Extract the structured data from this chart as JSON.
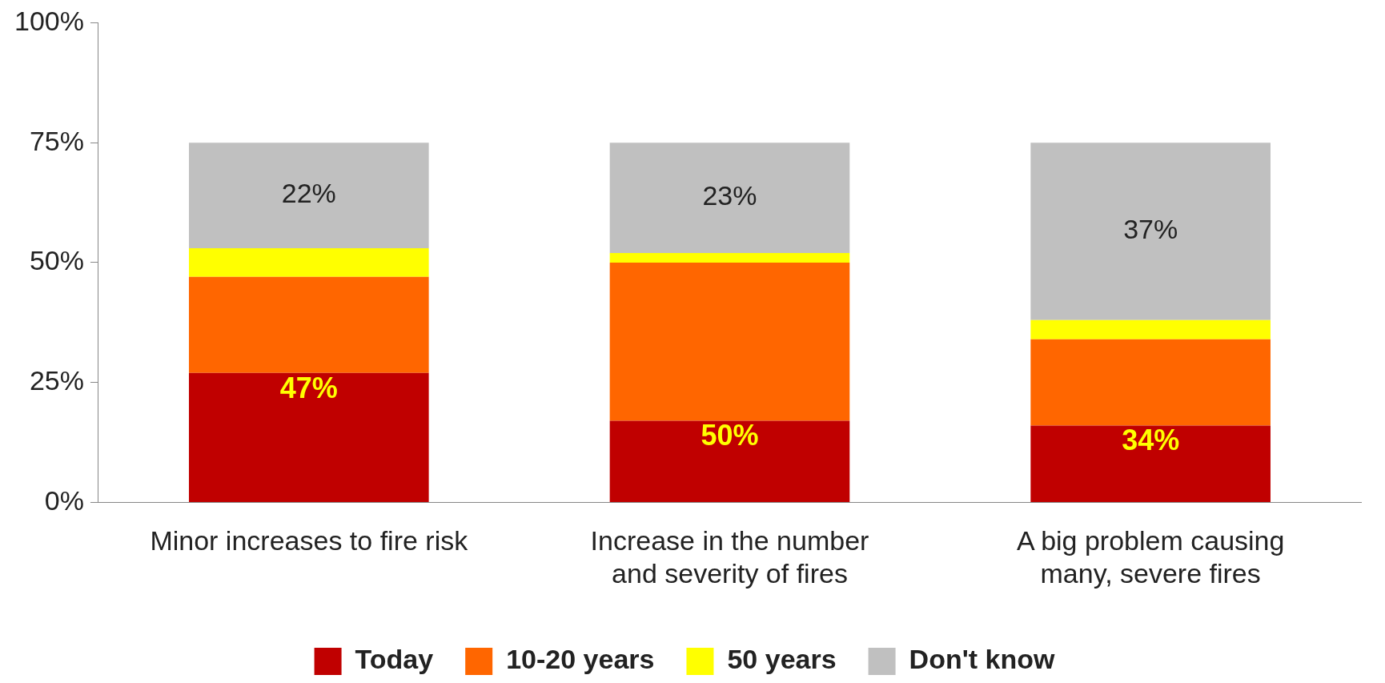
{
  "chart_data": {
    "type": "bar",
    "stacked": true,
    "categories": [
      "Minor increases to fire risk",
      "Increase in the number and severity of fires",
      "A big problem causing many, severe fires"
    ],
    "series": [
      {
        "name": "Today",
        "color": "#c00000",
        "values": [
          27,
          17,
          16
        ]
      },
      {
        "name": "10-20 years",
        "color": "#ff6600",
        "values": [
          20,
          33,
          18
        ]
      },
      {
        "name": "50 years",
        "color": "#ffff00",
        "values": [
          6,
          2,
          4
        ]
      },
      {
        "name": "Don't know",
        "color": "#c0c0c0",
        "values": [
          22,
          23,
          37
        ],
        "value_labels": [
          "22%",
          "23%",
          "37%"
        ]
      }
    ],
    "ylim": [
      0,
      100
    ],
    "yticks": [
      {
        "value": 0,
        "label": "0%"
      },
      {
        "value": 25,
        "label": "25%"
      },
      {
        "value": 50,
        "label": "50%"
      },
      {
        "value": 75,
        "label": "75%"
      },
      {
        "value": 100,
        "label": "100%"
      }
    ],
    "annotations": [
      {
        "text": "47%",
        "x": "Minor increases to fire risk",
        "y": 27
      },
      {
        "text": "50%",
        "x": "Increase in the number and severity of fires",
        "y": 17
      },
      {
        "text": "34%",
        "x": "A big problem causing many, severe fires",
        "y": 16
      }
    ],
    "grid": false,
    "legend": "bottom"
  }
}
